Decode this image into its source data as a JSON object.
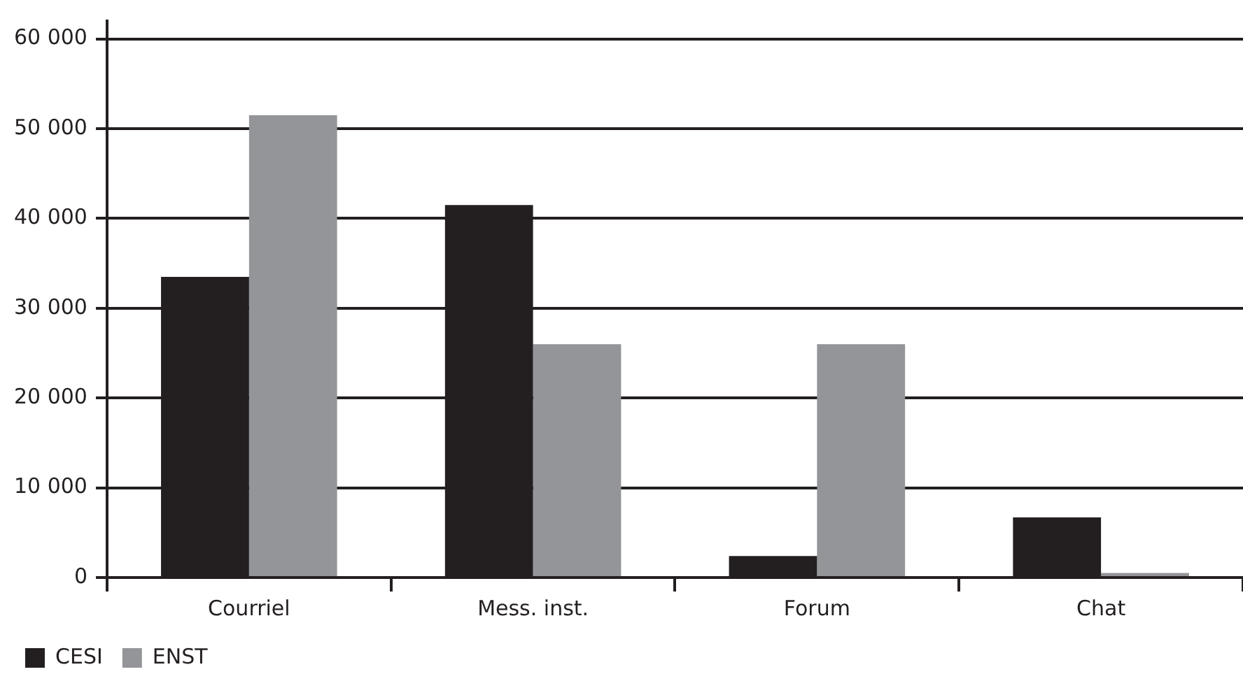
{
  "chart_data": {
    "type": "bar",
    "categories": [
      "Courriel",
      "Mess. inst.",
      "Forum",
      "Chat"
    ],
    "series": [
      {
        "name": "CESI",
        "color": "#231f20",
        "values": [
          33500,
          41500,
          2400,
          6700
        ]
      },
      {
        "name": "ENST",
        "color": "#939598",
        "values": [
          51500,
          26000,
          26000,
          500
        ]
      }
    ],
    "ylim": [
      0,
      62000
    ],
    "yticks": [
      {
        "value": 0,
        "label": "0"
      },
      {
        "value": 10000,
        "label": "10 000"
      },
      {
        "value": 20000,
        "label": "20 000"
      },
      {
        "value": 30000,
        "label": "30 000"
      },
      {
        "value": 40000,
        "label": "40 000"
      },
      {
        "value": 50000,
        "label": "50 000"
      },
      {
        "value": 60000,
        "label": "60 000"
      }
    ],
    "grid": "y",
    "legend": "bottom left"
  }
}
